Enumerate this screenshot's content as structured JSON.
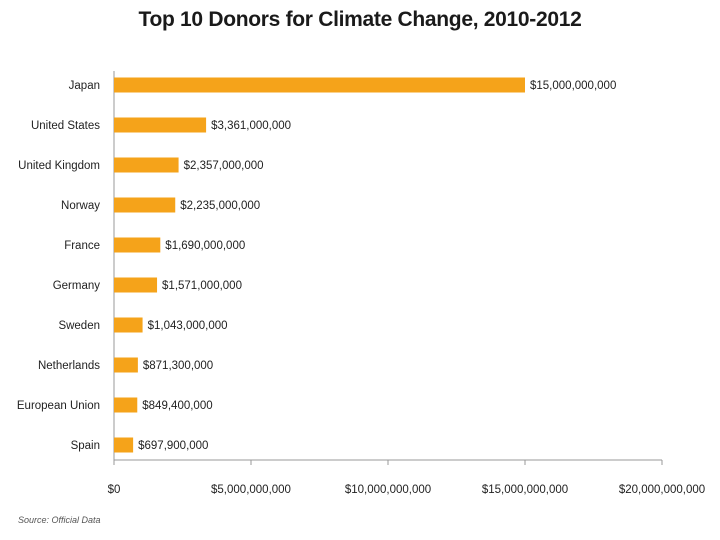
{
  "colors": {
    "bar": "#F5A31A",
    "axis": "#999999",
    "background": "#ffffff"
  },
  "chart_data": {
    "type": "bar",
    "orientation": "horizontal",
    "title": "Top 10 Donors for Climate Change, 2010-2012",
    "source": "Source: Official Data",
    "categories": [
      "Japan",
      "United States",
      "United Kingdom",
      "Norway",
      "France",
      "Germany",
      "Sweden",
      "Netherlands",
      "European Union",
      "Spain"
    ],
    "values": [
      15000000000,
      3361000000,
      2357000000,
      2235000000,
      1690000000,
      1571000000,
      1043000000,
      871300000,
      849400000,
      697900000
    ],
    "value_labels": [
      "$15,000,000,000",
      "$3,361,000,000",
      "$2,357,000,000",
      "$2,235,000,000",
      "$1,690,000,000",
      "$1,571,000,000",
      "$1,043,000,000",
      "$871,300,000",
      "$849,400,000",
      "$697,900,000"
    ],
    "xlim": [
      0,
      20000000000
    ],
    "xticks": [
      0,
      5000000000,
      10000000000,
      15000000000,
      20000000000
    ],
    "xtick_labels": [
      "$0",
      "$5,000,000,000",
      "$10,000,000,000",
      "$15,000,000,000",
      "$20,000,000,000"
    ],
    "grid": false,
    "legend": "none"
  }
}
